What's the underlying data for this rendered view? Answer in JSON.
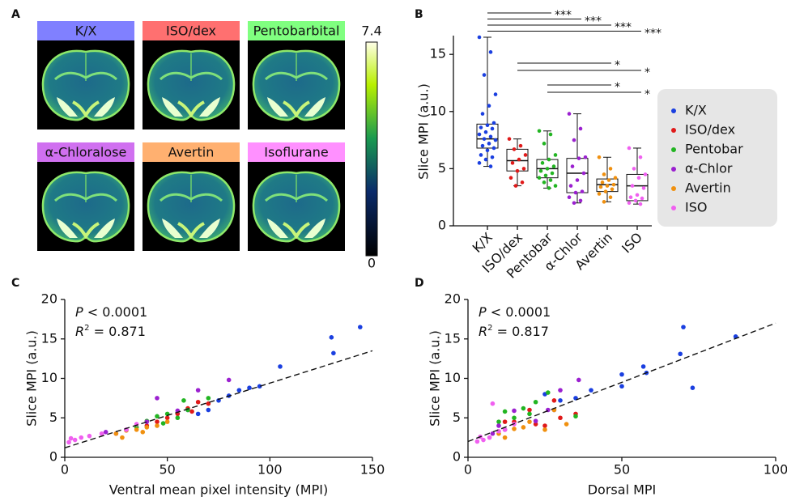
{
  "chart_data": [
    {
      "type": "image-grid",
      "panel": "A",
      "titles": [
        "K/X",
        "ISO/dex",
        "Pentobarbital",
        "α-Chloralose",
        "Avertin",
        "Isoflurane"
      ],
      "title_colors": [
        "#8080ff",
        "#ff7070",
        "#80ff80",
        "#d070f0",
        "#ffb070",
        "#ff90ff"
      ],
      "colorbar": {
        "range": [
          0,
          7.4
        ],
        "ticks": [
          0,
          7.4
        ]
      }
    },
    {
      "type": "box",
      "panel": "B",
      "ylabel": "Slice MPI (a.u.)",
      "categories": [
        "K/X",
        "ISO/dex",
        "Pentobar",
        "α-Chlor",
        "Avertin",
        "ISO"
      ],
      "ylim": [
        0,
        16.5
      ],
      "yticks": [
        0,
        5,
        10,
        15
      ],
      "series": [
        {
          "name": "K/X",
          "color": "#1a3fe0",
          "min": 5.2,
          "q1": 6.8,
          "median": 7.6,
          "q3": 8.9,
          "max": 16.5,
          "points": [
            16.5,
            15.2,
            13.2,
            11.5,
            10.5,
            9.8,
            9.0,
            8.8,
            8.6,
            8.5,
            8.2,
            8.0,
            7.8,
            7.6,
            7.5,
            7.2,
            7.0,
            6.8,
            6.6,
            6.2,
            6.0,
            5.8,
            5.5,
            5.2
          ]
        },
        {
          "name": "ISO/dex",
          "color": "#e01a1a",
          "min": 3.5,
          "q1": 4.8,
          "median": 5.7,
          "q3": 6.7,
          "max": 7.6,
          "points": [
            7.6,
            7.0,
            6.7,
            6.2,
            5.8,
            5.5,
            5.0,
            4.8,
            4.2,
            3.8,
            3.5
          ]
        },
        {
          "name": "Pentobar",
          "color": "#22b522",
          "min": 3.3,
          "q1": 4.2,
          "median": 5.0,
          "q3": 5.8,
          "max": 8.3,
          "points": [
            8.3,
            8.0,
            7.2,
            6.2,
            5.8,
            5.5,
            5.2,
            5.0,
            4.8,
            4.6,
            4.4,
            4.2,
            4.0,
            3.8,
            3.5,
            3.3
          ]
        },
        {
          "name": "α-Chlor",
          "color": "#9b20d0",
          "min": 2.0,
          "q1": 2.9,
          "median": 4.6,
          "q3": 5.9,
          "max": 9.8,
          "points": [
            9.8,
            8.5,
            7.5,
            6.0,
            5.9,
            5.2,
            4.6,
            4.0,
            3.5,
            3.0,
            2.9,
            2.5,
            2.2,
            2.0
          ]
        },
        {
          "name": "Avertin",
          "color": "#f0900f",
          "min": 2.1,
          "q1": 3.0,
          "median": 3.6,
          "q3": 4.1,
          "max": 6.0,
          "points": [
            6.0,
            5.0,
            4.5,
            4.2,
            4.0,
            3.8,
            3.6,
            3.5,
            3.4,
            3.2,
            3.0,
            2.8,
            2.5,
            2.1
          ]
        },
        {
          "name": "ISO",
          "color": "#f060f0",
          "min": 1.9,
          "q1": 2.2,
          "median": 3.5,
          "q3": 4.5,
          "max": 6.8,
          "points": [
            6.8,
            6.0,
            5.0,
            4.5,
            4.2,
            3.5,
            3.3,
            2.7,
            2.5,
            2.4,
            2.2,
            2.0,
            1.9
          ]
        }
      ],
      "comparisons": [
        {
          "from": 0,
          "to": 2,
          "label": "***"
        },
        {
          "from": 0,
          "to": 3,
          "label": "***"
        },
        {
          "from": 0,
          "to": 4,
          "label": "***"
        },
        {
          "from": 0,
          "to": 5,
          "label": "***"
        },
        {
          "from": 1,
          "to": 4,
          "label": "*"
        },
        {
          "from": 1,
          "to": 5,
          "label": "*"
        },
        {
          "from": 2,
          "to": 4,
          "label": "*"
        },
        {
          "from": 2,
          "to": 5,
          "label": "*"
        }
      ]
    },
    {
      "type": "scatter",
      "panel": "C",
      "xlabel": "Ventral mean pixel intensity (MPI)",
      "ylabel": "Slice MPI (a.u.)",
      "xlim": [
        0,
        150
      ],
      "xticks": [
        0,
        50,
        100,
        150
      ],
      "ylim": [
        0,
        20
      ],
      "yticks": [
        0,
        5,
        10,
        15,
        20
      ],
      "fit": {
        "intercept": 1.2,
        "slope": 0.082
      },
      "stats": [
        {
          "italic": "P",
          "rest": " < 0.0001"
        },
        {
          "italic": "R",
          "sup": "2",
          "rest": " = 0.871"
        }
      ],
      "series": [
        {
          "name": "K/X",
          "color": "#1a3fe0",
          "x": [
            130,
            131,
            144,
            105,
            95,
            90,
            85,
            75,
            70,
            65,
            80,
            60
          ],
          "y": [
            15.2,
            13.2,
            16.5,
            11.5,
            9.0,
            8.8,
            8.5,
            7.2,
            6.0,
            5.5,
            7.8,
            6.0
          ]
        },
        {
          "name": "ISO/dex",
          "color": "#e01a1a",
          "x": [
            65,
            60,
            55,
            70,
            50,
            45,
            62,
            40
          ],
          "y": [
            7.0,
            6.2,
            5.5,
            6.8,
            5.0,
            4.5,
            5.8,
            4.0
          ]
        },
        {
          "name": "Pentobar",
          "color": "#22b522",
          "x": [
            40,
            45,
            50,
            55,
            60,
            35,
            70,
            48,
            58
          ],
          "y": [
            4.6,
            5.2,
            5.5,
            5.0,
            6.0,
            3.8,
            7.5,
            4.3,
            7.2
          ]
        },
        {
          "name": "α-Chlor",
          "color": "#9b20d0",
          "x": [
            20,
            30,
            40,
            45,
            65,
            80,
            55,
            25
          ],
          "y": [
            3.2,
            3.5,
            4.5,
            7.5,
            8.5,
            9.8,
            5.9,
            3.0
          ]
        },
        {
          "name": "Avertin",
          "color": "#f0900f",
          "x": [
            25,
            30,
            35,
            40,
            45,
            50,
            28,
            38
          ],
          "y": [
            3.0,
            3.4,
            3.5,
            3.8,
            4.0,
            4.5,
            2.5,
            3.2
          ]
        },
        {
          "name": "ISO",
          "color": "#f060f0",
          "x": [
            2,
            5,
            8,
            12,
            18,
            30,
            35,
            3
          ],
          "y": [
            1.9,
            2.2,
            2.5,
            2.7,
            3.0,
            3.5,
            4.2,
            2.4
          ]
        }
      ]
    },
    {
      "type": "scatter",
      "panel": "D",
      "xlabel": "Dorsal MPI",
      "ylabel": "Slice MPI (a.u.)",
      "xlim": [
        0,
        100
      ],
      "xticks": [
        0,
        50,
        100
      ],
      "ylim": [
        0,
        20
      ],
      "yticks": [
        0,
        5,
        10,
        15,
        20
      ],
      "fit": {
        "intercept": 2.0,
        "slope": 0.15
      },
      "stats": [
        {
          "italic": "P",
          "rest": " < 0.0001"
        },
        {
          "italic": "R",
          "sup": "2",
          "rest": " = 0.817"
        }
      ],
      "series": [
        {
          "name": "K/X",
          "color": "#1a3fe0",
          "x": [
            70,
            69,
            87,
            73,
            57,
            58,
            50,
            50,
            40,
            35,
            30,
            28,
            25
          ],
          "y": [
            16.5,
            13.1,
            15.3,
            8.8,
            11.5,
            10.7,
            10.5,
            9.0,
            8.5,
            7.5,
            7.2,
            6.0,
            8.0
          ]
        },
        {
          "name": "ISO/dex",
          "color": "#e01a1a",
          "x": [
            28,
            20,
            30,
            15,
            22,
            12,
            35,
            25
          ],
          "y": [
            7.2,
            6.0,
            5.0,
            4.5,
            4.2,
            4.5,
            5.5,
            4.0
          ]
        },
        {
          "name": "Pentobar",
          "color": "#22b522",
          "x": [
            26,
            18,
            12,
            15,
            20,
            35,
            10,
            22
          ],
          "y": [
            8.2,
            6.2,
            5.8,
            5.0,
            5.5,
            5.2,
            4.5,
            7.0
          ]
        },
        {
          "name": "α-Chlor",
          "color": "#9b20d0",
          "x": [
            36,
            30,
            15,
            10,
            8,
            12,
            22,
            26
          ],
          "y": [
            9.8,
            8.5,
            5.9,
            4.0,
            3.0,
            3.5,
            4.6,
            6.0
          ]
        },
        {
          "name": "Avertin",
          "color": "#f0900f",
          "x": [
            20,
            15,
            25,
            32,
            10,
            12,
            18,
            28
          ],
          "y": [
            4.5,
            3.6,
            3.5,
            4.2,
            3.0,
            2.5,
            3.8,
            6.0
          ]
        },
        {
          "name": "ISO",
          "color": "#f060f0",
          "x": [
            3,
            5,
            7,
            4,
            10,
            12,
            15,
            8
          ],
          "y": [
            2.0,
            2.2,
            2.5,
            2.6,
            3.3,
            3.5,
            4.2,
            6.8
          ]
        }
      ]
    }
  ]
}
